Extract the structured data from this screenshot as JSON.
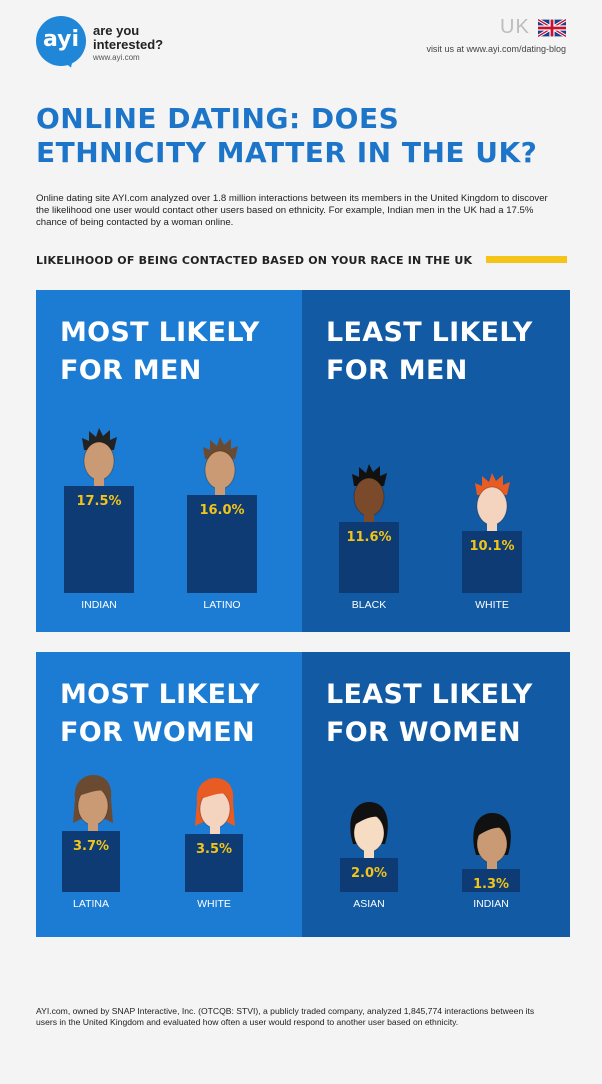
{
  "header": {
    "logo_mark": "ayi",
    "logo_tagline": "are you interested?",
    "logo_url": "www.ayi.com",
    "country": "UK",
    "visit_text": "visit us at www.ayi.com/dating-blog"
  },
  "title": "ONLINE DATING: DOES ETHNICITY MATTER IN THE UK?",
  "intro": "Online dating site AYI.com analyzed over 1.8 million interactions between its members in the United Kingdom to discover the likelihood one user would contact other users based on ethnicity. For example, Indian men in the UK had a 17.5% chance of being contacted by a woman online.",
  "section_heading": "LIKELIHOOD OF BEING CONTACTED BASED ON YOUR RACE IN THE UK",
  "colors": {
    "title_blue": "#1c75c8",
    "panel_light": "#1c7bd2",
    "panel_dark": "#125aa3",
    "bar": "#0f3b74",
    "value_yellow": "#f2c517",
    "accent_yellow": "#f4c418"
  },
  "chart_data": [
    {
      "type": "bar",
      "title": "MOST LIKELY FOR MEN",
      "categories": [
        "INDIAN",
        "LATINO"
      ],
      "values": [
        17.5,
        16.0
      ],
      "value_labels": [
        "17.5%",
        "16.0%"
      ]
    },
    {
      "type": "bar",
      "title": "LEAST LIKELY FOR MEN",
      "categories": [
        "BLACK",
        "WHITE"
      ],
      "values": [
        11.6,
        10.1
      ],
      "value_labels": [
        "11.6%",
        "10.1%"
      ]
    },
    {
      "type": "bar",
      "title": "MOST LIKELY FOR WOMEN",
      "categories": [
        "LATINA",
        "WHITE"
      ],
      "values": [
        3.7,
        3.5
      ],
      "value_labels": [
        "3.7%",
        "3.5%"
      ]
    },
    {
      "type": "bar",
      "title": "LEAST LIKELY FOR WOMEN",
      "categories": [
        "ASIAN",
        "INDIAN"
      ],
      "values": [
        2.0,
        1.3
      ],
      "value_labels": [
        "2.0%",
        "1.3%"
      ]
    }
  ],
  "panel_titles": {
    "men_most": [
      "MOST LIKELY",
      "FOR MEN"
    ],
    "men_least": [
      "LEAST LIKELY",
      "FOR MEN"
    ],
    "women_most": [
      "MOST LIKELY",
      "FOR WOMEN"
    ],
    "women_least": [
      "LEAST LIKELY",
      "FOR WOMEN"
    ]
  },
  "figures": {
    "men_most": [
      {
        "skin": "#c99a74",
        "hair": "#222222",
        "style": "spiky"
      },
      {
        "skin": "#c99a74",
        "hair": "#6b4a32",
        "style": "spiky"
      }
    ],
    "men_least": [
      {
        "skin": "#7a4a2a",
        "hair": "#111111",
        "style": "spiky"
      },
      {
        "skin": "#f4d3bf",
        "hair": "#e85b22",
        "style": "spiky"
      }
    ],
    "women_most": [
      {
        "skin": "#c99a74",
        "hair": "#6b4a32",
        "style": "long"
      },
      {
        "skin": "#f4d3bf",
        "hair": "#e85b22",
        "style": "long"
      }
    ],
    "women_least": [
      {
        "skin": "#f7dcc4",
        "hair": "#111111",
        "style": "bob"
      },
      {
        "skin": "#c99a74",
        "hair": "#111111",
        "style": "bob"
      }
    ]
  },
  "footer": "AYI.com, owned by SNAP Interactive, Inc. (OTCQB: STVI), a publicly traded company, analyzed 1,845,774 interactions between its users in the United Kingdom and evaluated how often a user would respond to another user based on ethnicity."
}
